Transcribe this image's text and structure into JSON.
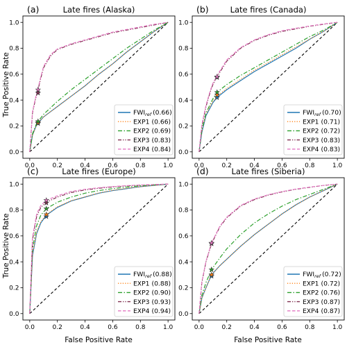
{
  "figure": {
    "xlabel": "False Positive Rate",
    "ylabel": "True Positive Rate",
    "ticks": [
      "0.0",
      "0.2",
      "0.4",
      "0.6",
      "0.8",
      "1.0"
    ]
  },
  "chart_data": [
    {
      "type": "line",
      "tag": "(a)",
      "title": "Late fires (Alaska)",
      "xlim": [
        0,
        1
      ],
      "ylim": [
        0,
        1
      ],
      "grid": false,
      "legend_placement": "lower-right",
      "chance_line": true,
      "series": [
        {
          "name": "FWI",
          "name_sub": "ref",
          "auc": "(0.66)",
          "color": "#1f77b4",
          "dash": "solid",
          "x": [
            0,
            0.02,
            0.05,
            0.1,
            0.15,
            0.2,
            0.3,
            0.4,
            0.5,
            0.6,
            0.7,
            0.8,
            0.9,
            1.0
          ],
          "y": [
            0,
            0.13,
            0.21,
            0.27,
            0.31,
            0.35,
            0.43,
            0.51,
            0.6,
            0.68,
            0.77,
            0.85,
            0.93,
            1.0
          ],
          "star": [
            0.06,
            0.22
          ]
        },
        {
          "name": "EXP1",
          "auc": "(0.66)",
          "color": "#ff7f0e",
          "dash": "dotted",
          "x": [
            0,
            0.02,
            0.05,
            0.1,
            0.15,
            0.2,
            0.3,
            0.4,
            0.5,
            0.6,
            0.7,
            0.8,
            0.9,
            1.0
          ],
          "y": [
            0,
            0.13,
            0.21,
            0.27,
            0.31,
            0.35,
            0.43,
            0.51,
            0.6,
            0.68,
            0.77,
            0.85,
            0.93,
            1.0
          ],
          "star": [
            0.06,
            0.225
          ]
        },
        {
          "name": "EXP2",
          "auc": "(0.69)",
          "color": "#2ca02c",
          "dash": "dashdot",
          "x": [
            0,
            0.02,
            0.05,
            0.1,
            0.15,
            0.2,
            0.3,
            0.4,
            0.5,
            0.6,
            0.7,
            0.8,
            0.9,
            1.0
          ],
          "y": [
            0,
            0.14,
            0.22,
            0.29,
            0.34,
            0.39,
            0.48,
            0.56,
            0.64,
            0.72,
            0.8,
            0.87,
            0.94,
            1.0
          ],
          "star": [
            0.06,
            0.235
          ]
        },
        {
          "name": "EXP3",
          "auc": "(0.83)",
          "color": "#7f2f4f",
          "dash": "dashdotdot",
          "x": [
            0,
            0.02,
            0.04,
            0.06,
            0.08,
            0.1,
            0.15,
            0.2,
            0.3,
            0.4,
            0.5,
            0.6,
            0.7,
            0.8,
            0.9,
            1.0
          ],
          "y": [
            0,
            0.3,
            0.4,
            0.48,
            0.57,
            0.65,
            0.74,
            0.79,
            0.83,
            0.86,
            0.89,
            0.92,
            0.94,
            0.96,
            0.98,
            1.0
          ],
          "star": [
            0.06,
            0.455
          ]
        },
        {
          "name": "EXP4",
          "auc": "(0.84)",
          "color": "#e377c2",
          "dash": "dashed",
          "x": [
            0,
            0.02,
            0.04,
            0.06,
            0.08,
            0.1,
            0.15,
            0.2,
            0.3,
            0.4,
            0.5,
            0.6,
            0.7,
            0.8,
            0.9,
            1.0
          ],
          "y": [
            0,
            0.31,
            0.41,
            0.49,
            0.58,
            0.66,
            0.75,
            0.795,
            0.835,
            0.865,
            0.895,
            0.925,
            0.945,
            0.965,
            0.985,
            1.0
          ],
          "star": [
            0.06,
            0.48
          ]
        }
      ]
    },
    {
      "type": "line",
      "tag": "(b)",
      "title": "Late fires (Canada)",
      "xlim": [
        0,
        1
      ],
      "ylim": [
        0,
        1
      ],
      "grid": false,
      "legend_placement": "lower-right",
      "chance_line": true,
      "series": [
        {
          "name": "FWI",
          "name_sub": "ref",
          "auc": "(0.70)",
          "color": "#1f77b4",
          "dash": "solid",
          "x": [
            0,
            0.02,
            0.05,
            0.1,
            0.13,
            0.2,
            0.3,
            0.4,
            0.5,
            0.6,
            0.7,
            0.8,
            0.9,
            1.0
          ],
          "y": [
            0,
            0.15,
            0.28,
            0.38,
            0.42,
            0.48,
            0.55,
            0.62,
            0.68,
            0.74,
            0.8,
            0.87,
            0.93,
            1.0
          ],
          "star": [
            0.13,
            0.42
          ]
        },
        {
          "name": "EXP1",
          "auc": "(0.71)",
          "color": "#ff7f0e",
          "dash": "dotted",
          "x": [
            0,
            0.02,
            0.05,
            0.1,
            0.13,
            0.2,
            0.3,
            0.4,
            0.5,
            0.6,
            0.7,
            0.8,
            0.9,
            1.0
          ],
          "y": [
            0,
            0.16,
            0.29,
            0.39,
            0.43,
            0.49,
            0.56,
            0.63,
            0.69,
            0.75,
            0.81,
            0.87,
            0.93,
            1.0
          ],
          "star": [
            0.13,
            0.44
          ]
        },
        {
          "name": "EXP2",
          "auc": "(0.72)",
          "color": "#2ca02c",
          "dash": "dashdot",
          "x": [
            0,
            0.02,
            0.05,
            0.1,
            0.13,
            0.2,
            0.3,
            0.4,
            0.5,
            0.6,
            0.7,
            0.8,
            0.9,
            1.0
          ],
          "y": [
            0,
            0.17,
            0.3,
            0.41,
            0.46,
            0.52,
            0.59,
            0.65,
            0.71,
            0.77,
            0.83,
            0.89,
            0.94,
            1.0
          ],
          "star": [
            0.13,
            0.46
          ]
        },
        {
          "name": "EXP3",
          "auc": "(0.83)",
          "color": "#7f2f4f",
          "dash": "dashdotdot",
          "x": [
            0,
            0.02,
            0.05,
            0.08,
            0.1,
            0.13,
            0.2,
            0.3,
            0.4,
            0.5,
            0.6,
            0.7,
            0.8,
            0.9,
            1.0
          ],
          "y": [
            0,
            0.2,
            0.35,
            0.46,
            0.52,
            0.58,
            0.7,
            0.8,
            0.86,
            0.9,
            0.93,
            0.95,
            0.97,
            0.985,
            1.0
          ],
          "star": [
            0.13,
            0.575
          ]
        },
        {
          "name": "EXP4",
          "auc": "(0.83)",
          "color": "#e377c2",
          "dash": "dashed",
          "x": [
            0,
            0.02,
            0.05,
            0.08,
            0.1,
            0.13,
            0.2,
            0.3,
            0.4,
            0.5,
            0.6,
            0.7,
            0.8,
            0.9,
            1.0
          ],
          "y": [
            0,
            0.21,
            0.36,
            0.47,
            0.53,
            0.59,
            0.71,
            0.805,
            0.865,
            0.905,
            0.935,
            0.955,
            0.972,
            0.988,
            1.0
          ],
          "star": [
            0.13,
            0.58
          ]
        }
      ]
    },
    {
      "type": "line",
      "tag": "(c)",
      "title": "Late fires (Europe)",
      "xlim": [
        0,
        1
      ],
      "ylim": [
        0,
        1
      ],
      "grid": false,
      "legend_placement": "lower-right",
      "chance_line": true,
      "series": [
        {
          "name": "FWI",
          "name_sub": "ref",
          "auc": "(0.88)",
          "color": "#1f77b4",
          "dash": "solid",
          "x": [
            0,
            0.02,
            0.05,
            0.08,
            0.12,
            0.2,
            0.3,
            0.4,
            0.5,
            0.6,
            0.7,
            0.8,
            0.9,
            1.0
          ],
          "y": [
            0,
            0.45,
            0.62,
            0.7,
            0.76,
            0.82,
            0.87,
            0.9,
            0.93,
            0.95,
            0.965,
            0.98,
            0.99,
            1.0
          ],
          "star": [
            0.12,
            0.75
          ]
        },
        {
          "name": "EXP1",
          "auc": "(0.88)",
          "color": "#ff7f0e",
          "dash": "dotted",
          "x": [
            0,
            0.02,
            0.05,
            0.08,
            0.12,
            0.2,
            0.3,
            0.4,
            0.5,
            0.6,
            0.7,
            0.8,
            0.9,
            1.0
          ],
          "y": [
            0,
            0.46,
            0.63,
            0.71,
            0.765,
            0.825,
            0.872,
            0.902,
            0.932,
            0.952,
            0.967,
            0.98,
            0.99,
            1.0
          ],
          "star": [
            0.12,
            0.765
          ]
        },
        {
          "name": "EXP2",
          "auc": "(0.90)",
          "color": "#2ca02c",
          "dash": "dashdot",
          "x": [
            0,
            0.02,
            0.05,
            0.08,
            0.12,
            0.2,
            0.3,
            0.4,
            0.5,
            0.6,
            0.7,
            0.8,
            0.9,
            1.0
          ],
          "y": [
            0,
            0.5,
            0.68,
            0.76,
            0.81,
            0.86,
            0.9,
            0.93,
            0.95,
            0.965,
            0.977,
            0.987,
            0.994,
            1.0
          ],
          "star": [
            0.12,
            0.81
          ]
        },
        {
          "name": "EXP3",
          "auc": "(0.93)",
          "color": "#7f2f4f",
          "dash": "dashdotdot",
          "x": [
            0,
            0.02,
            0.05,
            0.08,
            0.12,
            0.2,
            0.3,
            0.4,
            0.5,
            0.6,
            0.7,
            0.8,
            0.9,
            1.0
          ],
          "y": [
            0,
            0.57,
            0.75,
            0.82,
            0.86,
            0.9,
            0.935,
            0.955,
            0.968,
            0.978,
            0.986,
            0.992,
            0.996,
            1.0
          ],
          "star": [
            0.12,
            0.855
          ]
        },
        {
          "name": "EXP4",
          "auc": "(0.94)",
          "color": "#e377c2",
          "dash": "dashed",
          "x": [
            0,
            0.02,
            0.05,
            0.08,
            0.12,
            0.2,
            0.3,
            0.4,
            0.5,
            0.6,
            0.7,
            0.8,
            0.9,
            1.0
          ],
          "y": [
            0,
            0.59,
            0.77,
            0.835,
            0.875,
            0.91,
            0.943,
            0.96,
            0.972,
            0.981,
            0.988,
            0.993,
            0.997,
            1.0
          ],
          "star": [
            0.12,
            0.875
          ]
        }
      ]
    },
    {
      "type": "line",
      "tag": "(d)",
      "title": "Late fires (Siberia)",
      "xlim": [
        0,
        1
      ],
      "ylim": [
        0,
        1
      ],
      "grid": false,
      "legend_placement": "lower-right",
      "chance_line": true,
      "series": [
        {
          "name": "FWI",
          "name_sub": "ref",
          "auc": "(0.72)",
          "color": "#1f77b4",
          "dash": "solid",
          "x": [
            0,
            0.02,
            0.05,
            0.09,
            0.15,
            0.2,
            0.3,
            0.4,
            0.5,
            0.6,
            0.7,
            0.8,
            0.9,
            1.0
          ],
          "y": [
            0,
            0.12,
            0.2,
            0.3,
            0.37,
            0.42,
            0.52,
            0.61,
            0.69,
            0.77,
            0.84,
            0.9,
            0.95,
            1.0
          ],
          "star": [
            0.09,
            0.29
          ]
        },
        {
          "name": "EXP1",
          "auc": "(0.72)",
          "color": "#ff7f0e",
          "dash": "dotted",
          "x": [
            0,
            0.02,
            0.05,
            0.09,
            0.15,
            0.2,
            0.3,
            0.4,
            0.5,
            0.6,
            0.7,
            0.8,
            0.9,
            1.0
          ],
          "y": [
            0,
            0.12,
            0.2,
            0.3,
            0.37,
            0.42,
            0.52,
            0.61,
            0.69,
            0.77,
            0.84,
            0.9,
            0.95,
            1.0
          ],
          "star": [
            0.09,
            0.3
          ]
        },
        {
          "name": "EXP2",
          "auc": "(0.76)",
          "color": "#2ca02c",
          "dash": "dashdot",
          "x": [
            0,
            0.02,
            0.05,
            0.09,
            0.15,
            0.2,
            0.3,
            0.4,
            0.5,
            0.6,
            0.7,
            0.8,
            0.9,
            1.0
          ],
          "y": [
            0,
            0.14,
            0.24,
            0.34,
            0.43,
            0.5,
            0.61,
            0.7,
            0.77,
            0.83,
            0.88,
            0.92,
            0.96,
            1.0
          ],
          "star": [
            0.09,
            0.34
          ]
        },
        {
          "name": "EXP3",
          "auc": "(0.87)",
          "color": "#7f2f4f",
          "dash": "dashdotdot",
          "x": [
            0,
            0.02,
            0.05,
            0.09,
            0.15,
            0.2,
            0.3,
            0.4,
            0.5,
            0.6,
            0.7,
            0.8,
            0.9,
            1.0
          ],
          "y": [
            0,
            0.24,
            0.4,
            0.54,
            0.67,
            0.74,
            0.83,
            0.88,
            0.915,
            0.94,
            0.96,
            0.975,
            0.99,
            1.0
          ],
          "star": [
            0.09,
            0.54
          ]
        },
        {
          "name": "EXP4",
          "auc": "(0.87)",
          "color": "#e377c2",
          "dash": "dashed",
          "x": [
            0,
            0.02,
            0.05,
            0.09,
            0.15,
            0.2,
            0.3,
            0.4,
            0.5,
            0.6,
            0.7,
            0.8,
            0.9,
            1.0
          ],
          "y": [
            0,
            0.245,
            0.405,
            0.545,
            0.675,
            0.745,
            0.835,
            0.885,
            0.918,
            0.942,
            0.962,
            0.977,
            0.99,
            1.0
          ],
          "star": [
            0.09,
            0.545
          ]
        }
      ]
    }
  ]
}
